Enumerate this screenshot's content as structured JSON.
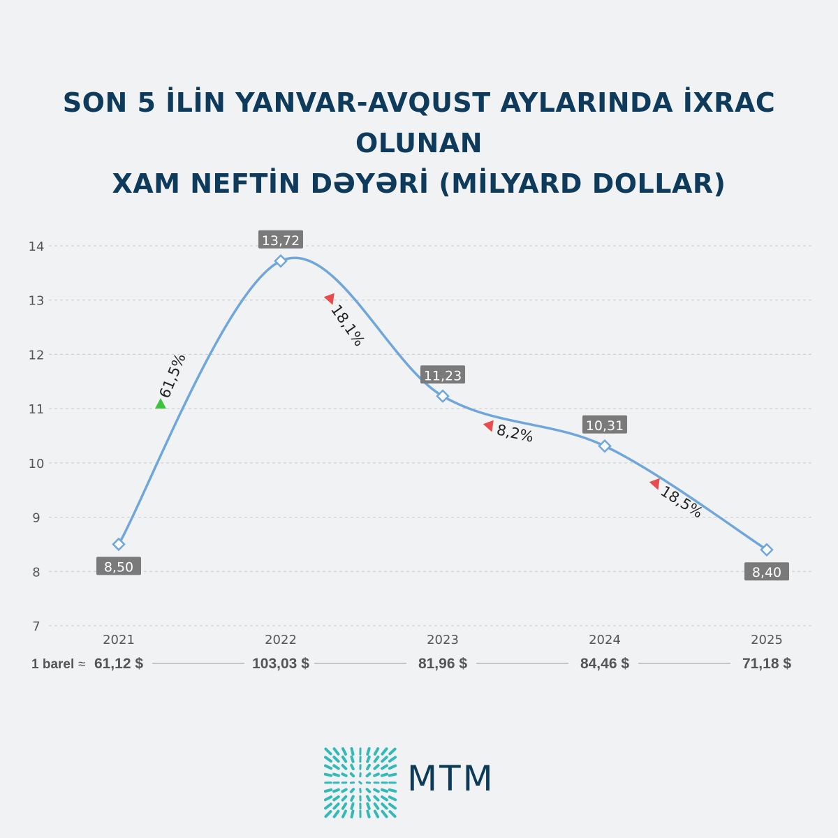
{
  "title_lines": [
    "SON 5 İLİN YANVAR-AVQUST AYLARINDA İXRAC OLUNAN",
    "XAM NEFTİN DƏYƏRİ (MİLYARD DOLLAR)"
  ],
  "chart_data": {
    "type": "line",
    "categories": [
      "2021",
      "2022",
      "2023",
      "2024",
      "2025"
    ],
    "values": [
      8.5,
      13.72,
      11.23,
      10.31,
      8.4
    ],
    "value_labels": [
      "8,50",
      "13,72",
      "11,23",
      "10,31",
      "8,40"
    ],
    "ylim": [
      7,
      14
    ],
    "yticks": [
      7,
      8,
      9,
      10,
      11,
      12,
      13,
      14
    ],
    "grid": true,
    "line_color": "#6fa6dc",
    "changes": [
      {
        "label": "61,5%",
        "direction": "up",
        "color": "#3cc43c"
      },
      {
        "label": "18,1%",
        "direction": "down",
        "color": "#e84c4c"
      },
      {
        "label": "8,2%",
        "direction": "down",
        "color": "#e84c4c"
      },
      {
        "label": "18,5%",
        "direction": "down",
        "color": "#e84c4c"
      }
    ],
    "barrel": {
      "label": "1 barel",
      "approx": "≈",
      "prices": [
        "61,12 $",
        "103,03 $",
        "81,96 $",
        "84,46 $",
        "71,18 $"
      ]
    }
  },
  "logo": {
    "text": "MTM",
    "color": "#1fb3b3"
  }
}
